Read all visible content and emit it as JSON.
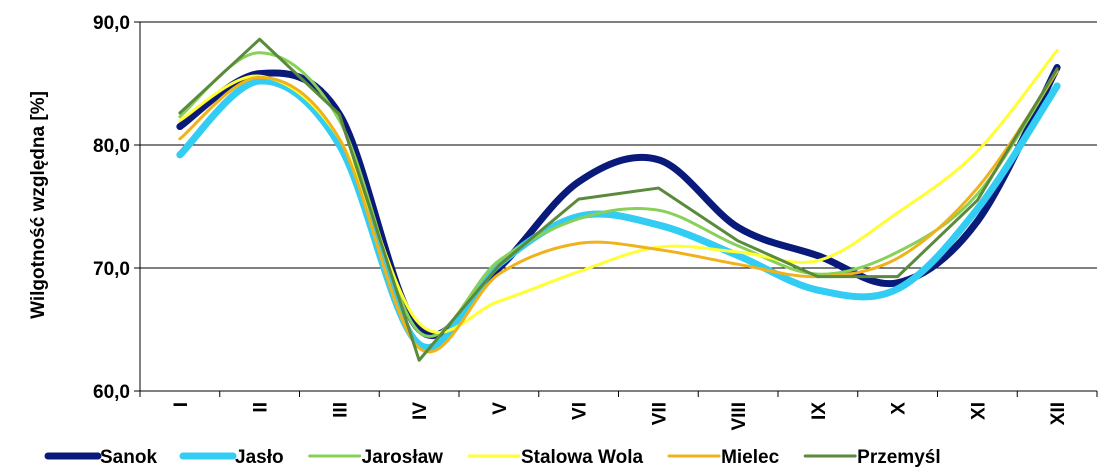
{
  "chart_data": {
    "type": "line",
    "ylabel": "Wilgotność względna [%]",
    "xlabel": "",
    "ylim": [
      60,
      90
    ],
    "yticks": [
      "60,0",
      "70,0",
      "80,0",
      "90,0"
    ],
    "ytick_values": [
      60,
      70,
      80,
      90
    ],
    "categories": [
      "I",
      "II",
      "III",
      "IV",
      "V",
      "VI",
      "VII",
      "VIII",
      "IX",
      "X",
      "XI",
      "XII"
    ],
    "grid": true,
    "legend_position": "bottom",
    "series": [
      {
        "name": "Sanok",
        "color": "#0a1a7a",
        "values": [
          81.5,
          85.8,
          82.5,
          65.0,
          70.0,
          77.0,
          78.8,
          73.3,
          71.0,
          68.8,
          73.8,
          86.3
        ]
      },
      {
        "name": "Jasło",
        "color": "#33ccf2",
        "values": [
          79.2,
          85.2,
          80.0,
          63.8,
          70.3,
          74.2,
          73.5,
          71.0,
          68.2,
          68.3,
          74.8,
          84.8
        ]
      },
      {
        "name": "Jarosław",
        "color": "#88d058",
        "values": [
          82.3,
          87.5,
          82.0,
          64.8,
          70.6,
          74.0,
          74.7,
          71.8,
          69.5,
          71.3,
          76.0,
          86.0
        ]
      },
      {
        "name": "Stalowa Wola",
        "color": "#ffff33",
        "values": [
          82.0,
          85.6,
          80.5,
          65.5,
          67.3,
          69.7,
          71.7,
          71.3,
          70.6,
          74.5,
          79.5,
          87.7
        ]
      },
      {
        "name": "Mielec",
        "color": "#f0b21a",
        "values": [
          80.5,
          85.5,
          80.5,
          63.5,
          69.5,
          72.0,
          71.5,
          70.3,
          69.3,
          70.8,
          76.5,
          86.0
        ]
      },
      {
        "name": "Przemyśl",
        "color": "#5a8a3c",
        "values": [
          82.6,
          88.6,
          82.5,
          62.5,
          70.2,
          75.6,
          76.5,
          72.2,
          69.3,
          69.3,
          75.5,
          86.2
        ]
      }
    ]
  }
}
